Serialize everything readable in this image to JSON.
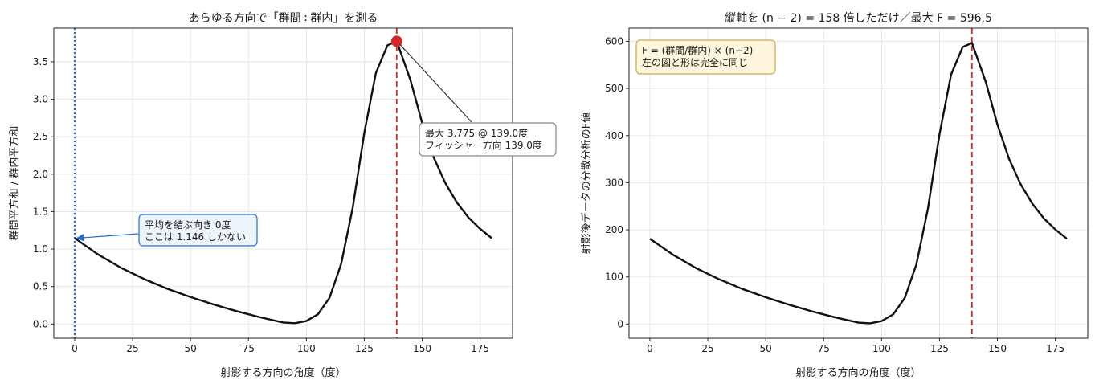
{
  "chart_data": [
    {
      "type": "line",
      "title": "あらゆる方向で「群間÷群内」を測る",
      "xlabel": "射影する方向の角度（度）",
      "ylabel": "群間平方和 / 群内平方和",
      "xlim": [
        -9,
        189
      ],
      "ylim": [
        -0.19,
        3.95
      ],
      "xticks": [
        0,
        25,
        50,
        75,
        100,
        125,
        150,
        175
      ],
      "yticks": [
        0.0,
        0.5,
        1.0,
        1.5,
        2.0,
        2.5,
        3.0,
        3.5
      ],
      "ytick_format": 1,
      "grid": true,
      "line_color": "#111111",
      "series": [
        {
          "x": [
            0,
            10,
            20,
            30,
            40,
            50,
            60,
            70,
            80,
            90,
            95,
            100,
            105,
            110,
            115,
            120,
            125,
            130,
            135,
            139,
            145,
            150,
            155,
            160,
            165,
            170,
            175,
            180
          ],
          "values": [
            1.146,
            0.93,
            0.75,
            0.6,
            0.47,
            0.36,
            0.26,
            0.17,
            0.09,
            0.02,
            0.01,
            0.04,
            0.13,
            0.35,
            0.8,
            1.55,
            2.55,
            3.35,
            3.72,
            3.775,
            3.25,
            2.68,
            2.22,
            1.88,
            1.62,
            1.42,
            1.27,
            1.146
          ]
        }
      ],
      "vlines": [
        {
          "x": 0,
          "color": "#1f6fd1",
          "style": "dotted"
        },
        {
          "x": 139,
          "color": "#d62728",
          "style": "dashed"
        }
      ],
      "marker": {
        "x": 139,
        "y": 3.775,
        "color": "#d62728"
      },
      "annotations": [
        {
          "lines": [
            "平均を結ぶ向き 0度",
            "ここは 1.146 しかない"
          ],
          "xy": [
            0,
            1.146
          ],
          "border": "#1f6fd1",
          "bg": "#eef4fc",
          "arrow_color": "#1f6fd1"
        },
        {
          "lines": [
            "最大 3.775 @ 139.0度",
            "フィッシャー方向 139.0度"
          ],
          "xy": [
            139,
            3.775
          ],
          "border": "#888888",
          "bg": "#ffffff",
          "arrow_color": "#333333"
        }
      ]
    },
    {
      "type": "line",
      "title": "縦軸を (n − 2) = 158 倍しただけ／最大 F = 596.5",
      "xlabel": "射影する方向の角度（度）",
      "ylabel": "射影後データの分散分析のF値",
      "xlim": [
        -9,
        189
      ],
      "ylim": [
        -30,
        628
      ],
      "xticks": [
        0,
        25,
        50,
        75,
        100,
        125,
        150,
        175
      ],
      "yticks": [
        0,
        100,
        200,
        300,
        400,
        500,
        600
      ],
      "ytick_format": 0,
      "grid": true,
      "line_color": "#111111",
      "series": [
        {
          "x": [
            0,
            10,
            20,
            30,
            40,
            50,
            60,
            70,
            80,
            90,
            95,
            100,
            105,
            110,
            115,
            120,
            125,
            130,
            135,
            139,
            145,
            150,
            155,
            160,
            165,
            170,
            175,
            180
          ],
          "values": [
            181,
            147,
            118.5,
            94.8,
            74.3,
            56.9,
            41.1,
            26.9,
            14.2,
            3.2,
            1.6,
            6.3,
            20.5,
            55.3,
            126.4,
            244.9,
            402.9,
            529.3,
            587.8,
            596.5,
            513.5,
            423.4,
            350.8,
            297,
            256,
            224.4,
            200.7,
            181
          ]
        }
      ],
      "vlines": [
        {
          "x": 139,
          "color": "#d62728",
          "style": "dashed"
        }
      ],
      "notebox": {
        "lines": [
          "F = (群間/群内) × (n−2)",
          "左の図と形は完全に同じ"
        ],
        "border": "#d4a843",
        "bg": "#fdf6dc"
      }
    }
  ]
}
